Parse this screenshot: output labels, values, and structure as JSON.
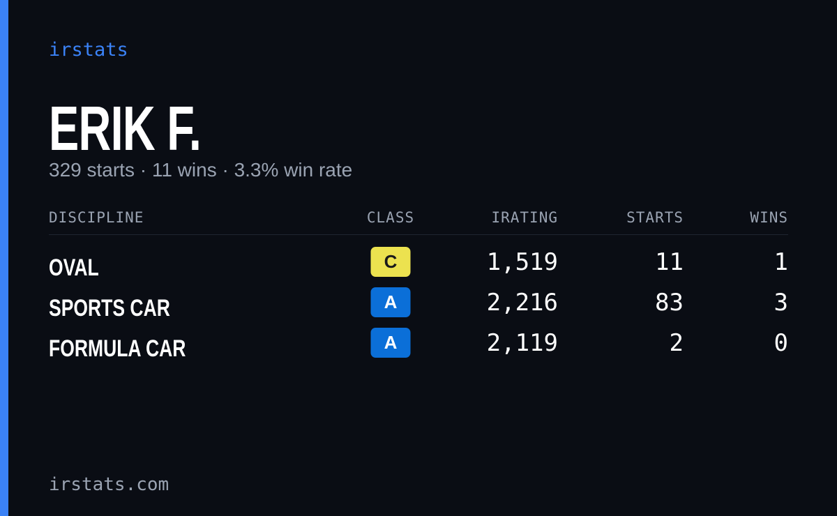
{
  "brand": "irstats",
  "name": "ERIK F.",
  "summary": "329 starts · 11 wins · 3.3% win rate",
  "table": {
    "headers": [
      "DISCIPLINE",
      "CLASS",
      "IRATING",
      "STARTS",
      "WINS"
    ],
    "rows": [
      [
        "OVAL",
        "C",
        "1,519",
        "11",
        "1"
      ],
      [
        "SPORTS CAR",
        "A",
        "2,216",
        "83",
        "3"
      ],
      [
        "FORMULA CAR",
        "A",
        "2,119",
        "2",
        "0"
      ]
    ]
  },
  "class_colors": {
    "C": {
      "bg": "#ece24f",
      "fg": "#1a1a1a"
    },
    "A": {
      "bg": "#0b6fd8",
      "fg": "#ffffff"
    }
  },
  "footer": "irstats.com"
}
